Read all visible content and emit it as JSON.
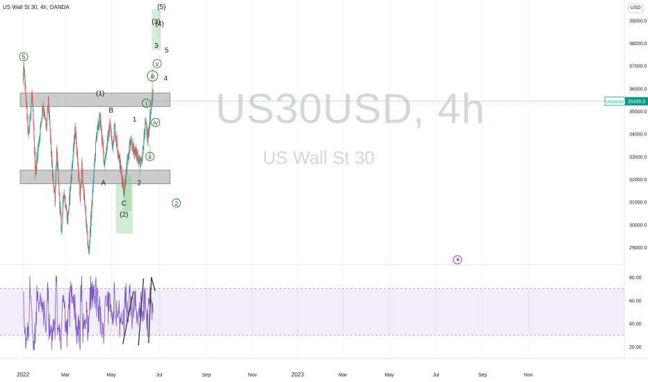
{
  "header": {
    "symbol_line": "US Wall St 30, 4h, OANDA"
  },
  "currency_label": "USD",
  "watermark": {
    "ticker": "US30USD, 4h",
    "name": "US Wall St 30"
  },
  "price_tag": {
    "symbol": "US30USD",
    "value": "35435.5"
  },
  "colors": {
    "up": "#26a69a",
    "down": "#ef5350",
    "rsi": "#7e57c2",
    "zone_gray": "#9e9e9e",
    "zone_green": "#a5d6a7",
    "label_green": "#1b5e20",
    "price_tag": "#089981"
  },
  "chart_data": {
    "type": "candlestick",
    "price_axis": {
      "ylim": [
        28000,
        39500
      ],
      "ticks": [
        "29000.0",
        "30000.0",
        "31000.0",
        "32000.0",
        "33000.0",
        "34000.0",
        "35000.0",
        "36000.0",
        "37000.0",
        "38000.0",
        "39000.0"
      ]
    },
    "time_axis": {
      "ticks": [
        "2022",
        "Mar",
        "May",
        "Jul",
        "Sep",
        "Nov",
        "2023",
        "Mar",
        "May",
        "Jul",
        "Sep",
        "Nov"
      ]
    },
    "anchors": [
      [
        "2022-01-01",
        36300
      ],
      [
        "2022-01-05",
        36900
      ],
      [
        "2022-01-25",
        33800
      ],
      [
        "2022-02-09",
        35800
      ],
      [
        "2022-02-24",
        32300
      ],
      [
        "2022-03-29",
        35300
      ],
      [
        "2022-04-12",
        34200
      ],
      [
        "2022-04-21",
        35400
      ],
      [
        "2022-05-09",
        32200
      ],
      [
        "2022-05-20",
        31200
      ],
      [
        "2022-05-27",
        33200
      ],
      [
        "2022-06-17",
        29700
      ],
      [
        "2022-06-27",
        31500
      ],
      [
        "2022-07-14",
        30200
      ],
      [
        "2022-08-16",
        34300
      ],
      [
        "2022-09-06",
        31100
      ],
      [
        "2022-09-13",
        32500
      ],
      [
        "2022-10-13",
        28700
      ],
      [
        "2022-11-15",
        33900
      ],
      [
        "2022-12-01",
        34700
      ],
      [
        "2022-12-20",
        32700
      ],
      [
        "2023-01-13",
        34400
      ],
      [
        "2023-01-24",
        33400
      ],
      [
        "2023-02-02",
        34300
      ],
      [
        "2023-03-15",
        31500
      ],
      [
        "2023-04-10",
        33600
      ],
      [
        "2023-05-04",
        33200
      ],
      [
        "2023-05-31",
        32600
      ],
      [
        "2023-06-16",
        34600
      ],
      [
        "2023-06-26",
        33700
      ],
      [
        "2023-07-04",
        34600
      ],
      [
        "2023-07-19",
        35800
      ]
    ],
    "zones": [
      {
        "kind": "gray-band",
        "from": "2021-12-20",
        "to": "2023-10-01",
        "y": [
          35200,
          35800
        ]
      },
      {
        "kind": "gray-band",
        "from": "2021-12-20",
        "to": "2023-10-01",
        "y": [
          31800,
          32400
        ]
      },
      {
        "kind": "green-box",
        "from": "2023-02-08",
        "to": "2023-04-22",
        "y": [
          29600,
          31800
        ]
      },
      {
        "kind": "green-box",
        "from": "2023-03-10",
        "to": "2023-04-16",
        "y": [
          30600,
          32200
        ]
      },
      {
        "kind": "green-box",
        "from": "2023-05-17",
        "to": "2023-05-23",
        "y": [
          31900,
          32900
        ]
      },
      {
        "kind": "green-box",
        "from": "2023-07-02",
        "to": "2023-07-10",
        "y": [
          32900,
          33500
        ]
      },
      {
        "kind": "green-box",
        "from": "2023-07-12",
        "to": "2023-07-22",
        "y": [
          35600,
          36900
        ]
      },
      {
        "kind": "green-box",
        "from": "2023-07-14",
        "to": "2023-08-22",
        "y": [
          37700,
          39500
        ]
      }
    ],
    "wave_labels": [
      {
        "text": "5",
        "x": "2022-01-04",
        "y": 37400,
        "circled": true
      },
      {
        "text": "(1)",
        "x": "2022-12-02",
        "y": 35800,
        "circled": false
      },
      {
        "text": "B",
        "x": "2023-01-18",
        "y": 35050,
        "circled": false
      },
      {
        "text": "1",
        "x": "2023-04-30",
        "y": 34650,
        "circled": false
      },
      {
        "text": "i",
        "x": "2023-06-20",
        "y": 35350,
        "circled": true
      },
      {
        "text": "A",
        "x": "2022-12-16",
        "y": 31850,
        "circled": false
      },
      {
        "text": "C",
        "x": "2023-03-15",
        "y": 30950,
        "circled": false
      },
      {
        "text": "(2)",
        "x": "2023-03-15",
        "y": 30450,
        "circled": false
      },
      {
        "text": "2",
        "x": "2023-05-20",
        "y": 31850,
        "circled": false
      },
      {
        "text": "ii",
        "x": "2023-07-06",
        "y": 33000,
        "circled": true
      },
      {
        "text": "iii",
        "x": "2023-07-17",
        "y": 36550,
        "circled": true
      },
      {
        "text": "iv",
        "x": "2023-07-30",
        "y": 34500,
        "circled": true
      },
      {
        "text": "v",
        "x": "2023-08-06",
        "y": 37100,
        "circled": true
      },
      {
        "text": "3",
        "x": "2023-08-02",
        "y": 37900,
        "circled": false
      },
      {
        "text": "(3)",
        "x": "2023-08-01",
        "y": 38950,
        "circled": false
      },
      {
        "text": "(4)",
        "x": "2023-08-17",
        "y": 38850,
        "circled": false
      },
      {
        "text": "(5)",
        "x": "2023-08-25",
        "y": 39600,
        "circled": false
      },
      {
        "text": "5",
        "x": "2023-09-16",
        "y": 37700,
        "circled": false
      },
      {
        "text": "4",
        "x": "2023-09-12",
        "y": 36450,
        "circled": false
      },
      {
        "text": "2",
        "x": "2023-10-28",
        "y": 30950,
        "circled": true
      }
    ],
    "rsi": {
      "ylim": [
        15,
        85
      ],
      "ticks": [
        "20.00",
        "40.00",
        "60.00",
        "80.00"
      ],
      "band": [
        30,
        70
      ],
      "trendlines": [
        {
          "from": [
            "2023-03-10",
            22
          ],
          "to": [
            "2023-04-25",
            68
          ]
        },
        {
          "from": [
            "2023-05-17",
            21
          ],
          "to": [
            "2023-06-08",
            79
          ]
        },
        {
          "from": [
            "2023-06-30",
            23
          ],
          "to": [
            "2023-07-12",
            80
          ]
        },
        {
          "from": [
            "2023-07-12",
            80
          ],
          "to": [
            "2023-07-28",
            68
          ]
        }
      ]
    }
  }
}
